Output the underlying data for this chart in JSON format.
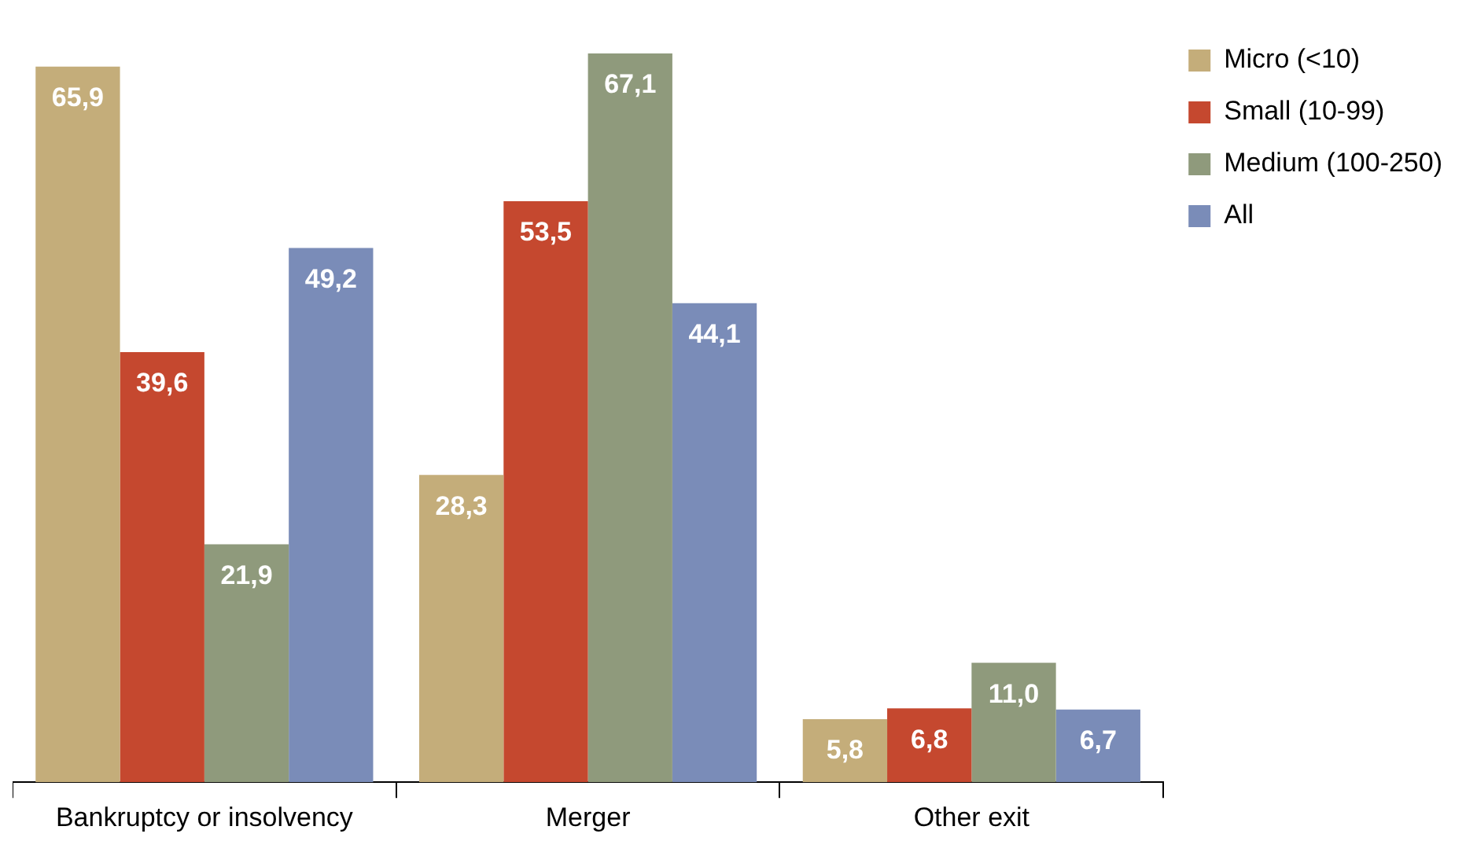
{
  "chart_data": {
    "type": "bar",
    "categories": [
      "Bankruptcy or insolvency",
      "Merger",
      "Other exit"
    ],
    "series": [
      {
        "name": "Micro (<10)",
        "color": "#c4ad7a",
        "values": [
          65.9,
          28.3,
          5.8
        ],
        "value_labels": [
          "65,9",
          "28,3",
          "5,8"
        ]
      },
      {
        "name": "Small (10-99)",
        "color": "#c5482f",
        "values": [
          39.6,
          53.5,
          6.8
        ],
        "value_labels": [
          "39,6",
          "53,5",
          "6,8"
        ]
      },
      {
        "name": "Medium (100-250)",
        "color": "#8f9a7c",
        "values": [
          21.9,
          67.1,
          11.0
        ],
        "value_labels": [
          "21,9",
          "67,1",
          "11,0"
        ]
      },
      {
        "name": "All",
        "color": "#7a8cb8",
        "values": [
          49.2,
          44.1,
          6.7
        ],
        "value_labels": [
          "49,2",
          "44,1",
          "6,7"
        ]
      }
    ],
    "legend": "right",
    "grid": false
  }
}
